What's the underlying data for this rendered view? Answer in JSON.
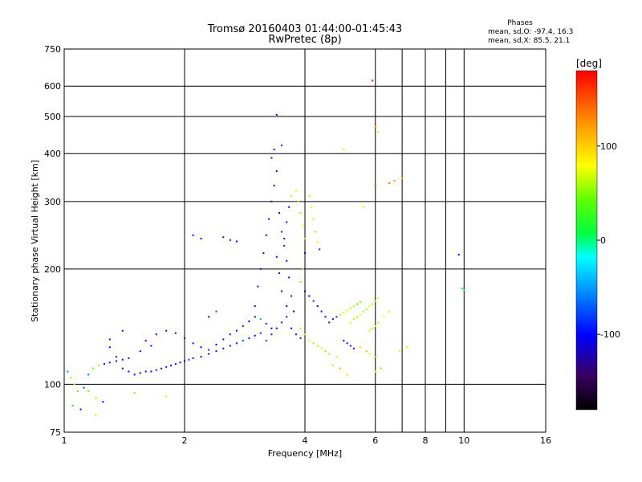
{
  "title": {
    "line1": "Tromsø 20160403 01:44:00-01:45:43",
    "line2": "RwPretec (8p)"
  },
  "phase_info": {
    "heading": "Phases",
    "line_o": "mean, sd,O: -97.4, 16.3",
    "line_x": "mean, sd,X:  85.5, 21.1"
  },
  "colorbar": {
    "unit": "[deg]",
    "min": -180,
    "max": 180,
    "ticks": [
      100,
      0,
      -100
    ],
    "tick_labels": [
      "100",
      "0",
      "-100"
    ]
  },
  "chart_data": {
    "type": "scatter",
    "title": "Tromsø 20160403 01:44:00-01:45:43",
    "subtitle": "RwPretec (8p)",
    "xlabel": "Frequency [MHz]",
    "ylabel": "Stationary phase Virtual Height [km]",
    "xscale": "log",
    "yscale": "log",
    "xlim": [
      1,
      16
    ],
    "ylim": [
      75,
      750
    ],
    "x_ticks": [
      1,
      2,
      4,
      6,
      8,
      10,
      16
    ],
    "x_tick_labels": [
      "1",
      "2",
      "4",
      "6",
      "8",
      "10",
      "16"
    ],
    "x_minor": [
      7,
      9
    ],
    "y_ticks": [
      75,
      100,
      200,
      300,
      400,
      500,
      600,
      750
    ],
    "y_tick_labels": [
      "75",
      "100",
      "200",
      "300",
      "400",
      "500",
      "600",
      "750"
    ],
    "grid": true,
    "color_encoding": "phase (deg)",
    "points": [
      [
        1.02,
        108,
        -60
      ],
      [
        1.04,
        104,
        80
      ],
      [
        1.06,
        100,
        100
      ],
      [
        1.08,
        96,
        60
      ],
      [
        1.05,
        88,
        40
      ],
      [
        1.1,
        86,
        -110
      ],
      [
        1.12,
        98,
        -80
      ],
      [
        1.15,
        106,
        -70
      ],
      [
        1.18,
        110,
        70
      ],
      [
        1.22,
        112,
        80
      ],
      [
        1.26,
        113,
        -100
      ],
      [
        1.3,
        114,
        -120
      ],
      [
        1.35,
        115,
        -110
      ],
      [
        1.4,
        116,
        -100
      ],
      [
        1.45,
        117,
        -120
      ],
      [
        1.2,
        83,
        90
      ],
      [
        1.25,
        90,
        -100
      ],
      [
        1.5,
        95,
        80
      ],
      [
        1.3,
        125,
        -110
      ],
      [
        1.35,
        118,
        -90
      ],
      [
        1.4,
        110,
        -110
      ],
      [
        1.45,
        108,
        -120
      ],
      [
        1.5,
        106,
        -100
      ],
      [
        1.55,
        107,
        -110
      ],
      [
        1.6,
        108,
        -120
      ],
      [
        1.65,
        108,
        -100
      ],
      [
        1.7,
        109,
        -110
      ],
      [
        1.75,
        110,
        -120
      ],
      [
        1.8,
        111,
        -100
      ],
      [
        1.85,
        112,
        -110
      ],
      [
        1.9,
        113,
        -120
      ],
      [
        1.95,
        114,
        -100
      ],
      [
        2.0,
        115,
        -110
      ],
      [
        2.05,
        116,
        -80
      ],
      [
        2.1,
        117,
        -100
      ],
      [
        1.6,
        130,
        -120
      ],
      [
        1.7,
        135,
        -110
      ],
      [
        1.8,
        138,
        -100
      ],
      [
        1.9,
        136,
        -110
      ],
      [
        2.0,
        132,
        -120
      ],
      [
        2.1,
        128,
        -100
      ],
      [
        2.2,
        125,
        -110
      ],
      [
        2.3,
        123,
        -90
      ],
      [
        1.55,
        122,
        -115
      ],
      [
        1.65,
        126,
        -105
      ],
      [
        2.2,
        118,
        -100
      ],
      [
        2.3,
        120,
        -110
      ],
      [
        2.4,
        122,
        -120
      ],
      [
        2.5,
        124,
        -100
      ],
      [
        2.6,
        126,
        -110
      ],
      [
        2.7,
        128,
        -120
      ],
      [
        2.8,
        130,
        -80
      ],
      [
        2.9,
        132,
        -100
      ],
      [
        3.0,
        134,
        -110
      ],
      [
        3.1,
        136,
        -90
      ],
      [
        2.4,
        127,
        -105
      ],
      [
        2.5,
        131,
        -115
      ],
      [
        2.6,
        135,
        -95
      ],
      [
        2.7,
        138,
        -110
      ],
      [
        2.8,
        142,
        -120
      ],
      [
        2.9,
        146,
        -100
      ],
      [
        3.0,
        150,
        -110
      ],
      [
        3.1,
        148,
        -60
      ],
      [
        3.2,
        144,
        -90
      ],
      [
        3.3,
        140,
        -110
      ],
      [
        3.0,
        160,
        -110
      ],
      [
        3.05,
        180,
        -120
      ],
      [
        3.1,
        200,
        -100
      ],
      [
        3.15,
        220,
        -110
      ],
      [
        3.2,
        245,
        -120
      ],
      [
        3.25,
        270,
        -100
      ],
      [
        3.3,
        300,
        -110
      ],
      [
        3.35,
        330,
        -120
      ],
      [
        3.4,
        360,
        -100
      ],
      [
        3.3,
        390,
        -110
      ],
      [
        3.35,
        410,
        -120
      ],
      [
        3.4,
        505,
        -110
      ],
      [
        3.5,
        420,
        -120
      ],
      [
        3.45,
        280,
        -100
      ],
      [
        3.5,
        250,
        -110
      ],
      [
        3.55,
        230,
        -120
      ],
      [
        3.6,
        210,
        -100
      ],
      [
        3.65,
        190,
        -110
      ],
      [
        3.7,
        170,
        -120
      ],
      [
        3.75,
        155,
        -100
      ],
      [
        3.2,
        130,
        -80
      ],
      [
        3.3,
        135,
        -90
      ],
      [
        3.4,
        140,
        -100
      ],
      [
        3.5,
        145,
        -110
      ],
      [
        3.6,
        150,
        -120
      ],
      [
        3.7,
        140,
        -100
      ],
      [
        3.8,
        135,
        -110
      ],
      [
        3.9,
        132,
        -90
      ],
      [
        3.6,
        160,
        -100
      ],
      [
        3.5,
        175,
        -110
      ],
      [
        3.45,
        195,
        -120
      ],
      [
        3.4,
        215,
        -100
      ],
      [
        3.55,
        240,
        -110
      ],
      [
        3.6,
        265,
        -120
      ],
      [
        3.65,
        290,
        -100
      ],
      [
        3.7,
        310,
        90
      ],
      [
        3.8,
        320,
        100
      ],
      [
        3.85,
        300,
        90
      ],
      [
        3.9,
        280,
        80
      ],
      [
        3.95,
        260,
        100
      ],
      [
        4.0,
        240,
        90
      ],
      [
        4.0,
        220,
        -100
      ],
      [
        3.95,
        200,
        70
      ],
      [
        3.9,
        185,
        80
      ],
      [
        4.0,
        175,
        -110
      ],
      [
        4.1,
        170,
        -100
      ],
      [
        4.2,
        165,
        -90
      ],
      [
        4.3,
        160,
        -110
      ],
      [
        4.4,
        155,
        -120
      ],
      [
        4.5,
        150,
        -100
      ],
      [
        4.1,
        310,
        90
      ],
      [
        4.15,
        290,
        100
      ],
      [
        4.2,
        270,
        90
      ],
      [
        4.25,
        250,
        80
      ],
      [
        4.3,
        235,
        100
      ],
      [
        4.35,
        225,
        -90
      ],
      [
        3.9,
        140,
        80
      ],
      [
        4.0,
        135,
        90
      ],
      [
        4.1,
        130,
        100
      ],
      [
        4.2,
        128,
        80
      ],
      [
        4.3,
        126,
        90
      ],
      [
        4.4,
        124,
        100
      ],
      [
        4.5,
        122,
        70
      ],
      [
        4.6,
        120,
        80
      ],
      [
        4.8,
        118,
        90
      ],
      [
        4.6,
        145,
        -110
      ],
      [
        4.7,
        148,
        -100
      ],
      [
        4.8,
        150,
        -120
      ],
      [
        4.9,
        152,
        80
      ],
      [
        5.0,
        154,
        90
      ],
      [
        5.1,
        156,
        100
      ],
      [
        5.2,
        158,
        80
      ],
      [
        5.3,
        160,
        90
      ],
      [
        5.4,
        162,
        60
      ],
      [
        5.5,
        164,
        70
      ],
      [
        5.2,
        145,
        100
      ],
      [
        5.3,
        148,
        90
      ],
      [
        5.4,
        150,
        80
      ],
      [
        5.5,
        152,
        100
      ],
      [
        5.6,
        155,
        90
      ],
      [
        5.7,
        157,
        80
      ],
      [
        5.8,
        160,
        100
      ],
      [
        5.9,
        162,
        90
      ],
      [
        6.0,
        165,
        80
      ],
      [
        6.1,
        168,
        100
      ],
      [
        5.8,
        138,
        90
      ],
      [
        5.9,
        140,
        80
      ],
      [
        6.0,
        142,
        100
      ],
      [
        6.1,
        145,
        90
      ],
      [
        6.3,
        150,
        110
      ],
      [
        6.5,
        155,
        100
      ],
      [
        5.0,
        130,
        -100
      ],
      [
        5.1,
        128,
        -110
      ],
      [
        5.2,
        126,
        -120
      ],
      [
        5.3,
        124,
        -100
      ],
      [
        5.5,
        125,
        120
      ],
      [
        5.7,
        122,
        130
      ],
      [
        5.8,
        120,
        110
      ],
      [
        6.0,
        118,
        140
      ],
      [
        4.7,
        112,
        90
      ],
      [
        4.9,
        110,
        130
      ],
      [
        5.1,
        106,
        120
      ],
      [
        6.0,
        108,
        110
      ],
      [
        6.2,
        110,
        130
      ],
      [
        6.9,
        122,
        100
      ],
      [
        7.2,
        125,
        90
      ],
      [
        5.0,
        410,
        120
      ],
      [
        6.0,
        470,
        140
      ],
      [
        6.1,
        455,
        120
      ],
      [
        6.0,
        330,
        160
      ],
      [
        5.9,
        620,
        170
      ],
      [
        6.5,
        335,
        150
      ],
      [
        6.7,
        340,
        140
      ],
      [
        7.0,
        345,
        130
      ],
      [
        5.6,
        290,
        100
      ],
      [
        9.7,
        218,
        -120
      ],
      [
        9.9,
        178,
        40
      ],
      [
        10.0,
        176,
        20
      ],
      [
        2.3,
        150,
        -100
      ],
      [
        2.4,
        155,
        -80
      ],
      [
        2.1,
        245,
        -100
      ],
      [
        2.2,
        240,
        -110
      ],
      [
        2.5,
        242,
        -100
      ],
      [
        2.6,
        238,
        -110
      ],
      [
        2.7,
        236,
        -100
      ],
      [
        1.4,
        138,
        -110
      ],
      [
        1.3,
        131,
        -120
      ],
      [
        1.2,
        92,
        80
      ],
      [
        1.15,
        96,
        70
      ],
      [
        1.8,
        93,
        90
      ]
    ]
  }
}
